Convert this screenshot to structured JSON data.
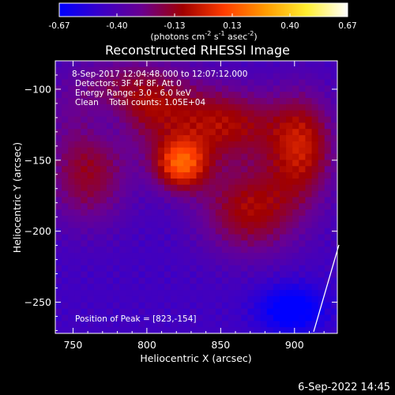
{
  "chart_data": {
    "type": "heatmap",
    "title": "Reconstructed RHESSI Image",
    "xlabel": "Heliocentric X (arcsec)",
    "ylabel": "Heliocentric Y (arcsec)",
    "xlim": [
      738,
      929
    ],
    "ylim": [
      -272,
      -80
    ],
    "x_ticks": [
      750,
      800,
      850,
      900
    ],
    "y_ticks": [
      -100,
      -150,
      -200,
      -250
    ],
    "colorbar": {
      "range": [
        -0.67,
        0.67
      ],
      "ticks": [
        "-0.67",
        "-0.40",
        "-0.13",
        "0.13",
        "0.40",
        "0.67"
      ],
      "unit_label": [
        "(photons cm",
        "-2",
        " s",
        "-1",
        " asec",
        "-2",
        ")"
      ],
      "colors": [
        "#0000ff",
        "#3a00c8",
        "#6a0090",
        "#a00000",
        "#ff3c00",
        "#ff9a00",
        "#ffee30",
        "#ffffff"
      ]
    },
    "annotations": [
      "8-Sep-2017 12:04:48.000 to 12:07:12.000",
      "Detectors: 3F 4F 8F, Att 0",
      "Energy Range: 3.0 - 6.0 keV",
      "Clean    Total counts: 1.05E+04"
    ],
    "peak_label": "Position of Peak = [823,-154]",
    "peak": [
      823,
      -154
    ],
    "sources": [
      {
        "x": 823,
        "y": -153,
        "sx": 13,
        "sy": 13,
        "amp": 0.55
      },
      {
        "x": 790,
        "y": -110,
        "sx": 30,
        "sy": 20,
        "amp": 0.42
      },
      {
        "x": 855,
        "y": -125,
        "sx": 25,
        "sy": 18,
        "amp": 0.34
      },
      {
        "x": 905,
        "y": -140,
        "sx": 16,
        "sy": 26,
        "amp": 0.4
      },
      {
        "x": 870,
        "y": -185,
        "sx": 24,
        "sy": 22,
        "amp": 0.36
      },
      {
        "x": 760,
        "y": -160,
        "sx": 20,
        "sy": 25,
        "amp": 0.3
      },
      {
        "x": 775,
        "y": -120,
        "sx": 15,
        "sy": 15,
        "amp": -0.25
      },
      {
        "x": 898,
        "y": -255,
        "sx": 16,
        "sy": 12,
        "amp": -0.3
      }
    ]
  },
  "date_stamp": "6-Sep-2022 14:45"
}
